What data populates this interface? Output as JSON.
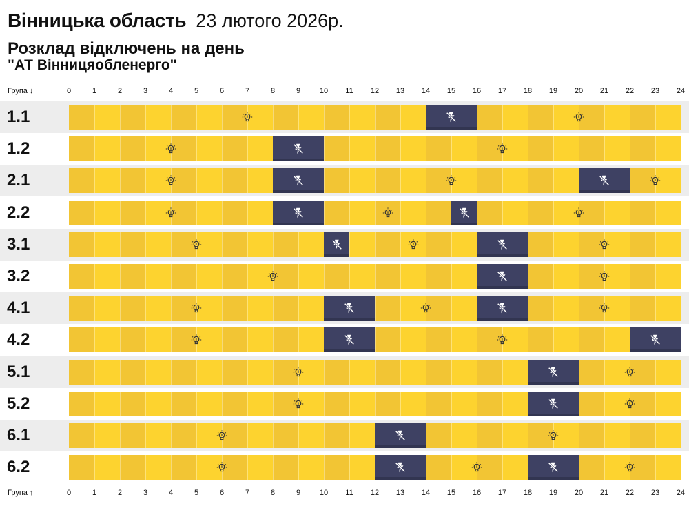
{
  "header": {
    "region": "Вінницька область",
    "date": "23 лютого 2026р.",
    "subtitle": "Розклад відключень на день",
    "company": "\"АТ Вінницяобленерго\""
  },
  "axis": {
    "top_label": "Група ↓",
    "bottom_label": "Група ↑",
    "ticks": [
      "0",
      "1",
      "2",
      "3",
      "4",
      "5",
      "6",
      "7",
      "8",
      "9",
      "10",
      "11",
      "12",
      "13",
      "14",
      "15",
      "16",
      "17",
      "18",
      "19",
      "20",
      "21",
      "22",
      "23",
      "24"
    ]
  },
  "icons": {
    "power_on": "lightbulb-icon",
    "power_off": "no-power-icon"
  },
  "colors": {
    "power_on": "#FDD32F",
    "power_on_alt": "#F2C534",
    "outage": "#3E4163",
    "row_alt": "#EDEDED"
  },
  "chart_data": {
    "type": "timeline",
    "x_range": [
      0,
      24
    ],
    "x_unit": "hour",
    "groups": [
      {
        "name": "1.1",
        "outages": [
          [
            14,
            16
          ]
        ]
      },
      {
        "name": "1.2",
        "outages": [
          [
            8,
            10
          ]
        ]
      },
      {
        "name": "2.1",
        "outages": [
          [
            8,
            10
          ],
          [
            20,
            22
          ]
        ]
      },
      {
        "name": "2.2",
        "outages": [
          [
            8,
            10
          ],
          [
            15,
            16
          ]
        ]
      },
      {
        "name": "3.1",
        "outages": [
          [
            10,
            11
          ],
          [
            16,
            18
          ]
        ]
      },
      {
        "name": "3.2",
        "outages": [
          [
            16,
            18
          ]
        ]
      },
      {
        "name": "4.1",
        "outages": [
          [
            10,
            12
          ],
          [
            16,
            18
          ]
        ]
      },
      {
        "name": "4.2",
        "outages": [
          [
            10,
            12
          ],
          [
            22,
            24
          ]
        ]
      },
      {
        "name": "5.1",
        "outages": [
          [
            18,
            20
          ]
        ]
      },
      {
        "name": "5.2",
        "outages": [
          [
            18,
            20
          ]
        ]
      },
      {
        "name": "6.1",
        "outages": [
          [
            12,
            14
          ]
        ]
      },
      {
        "name": "6.2",
        "outages": [
          [
            12,
            14
          ],
          [
            18,
            20
          ]
        ]
      }
    ]
  }
}
